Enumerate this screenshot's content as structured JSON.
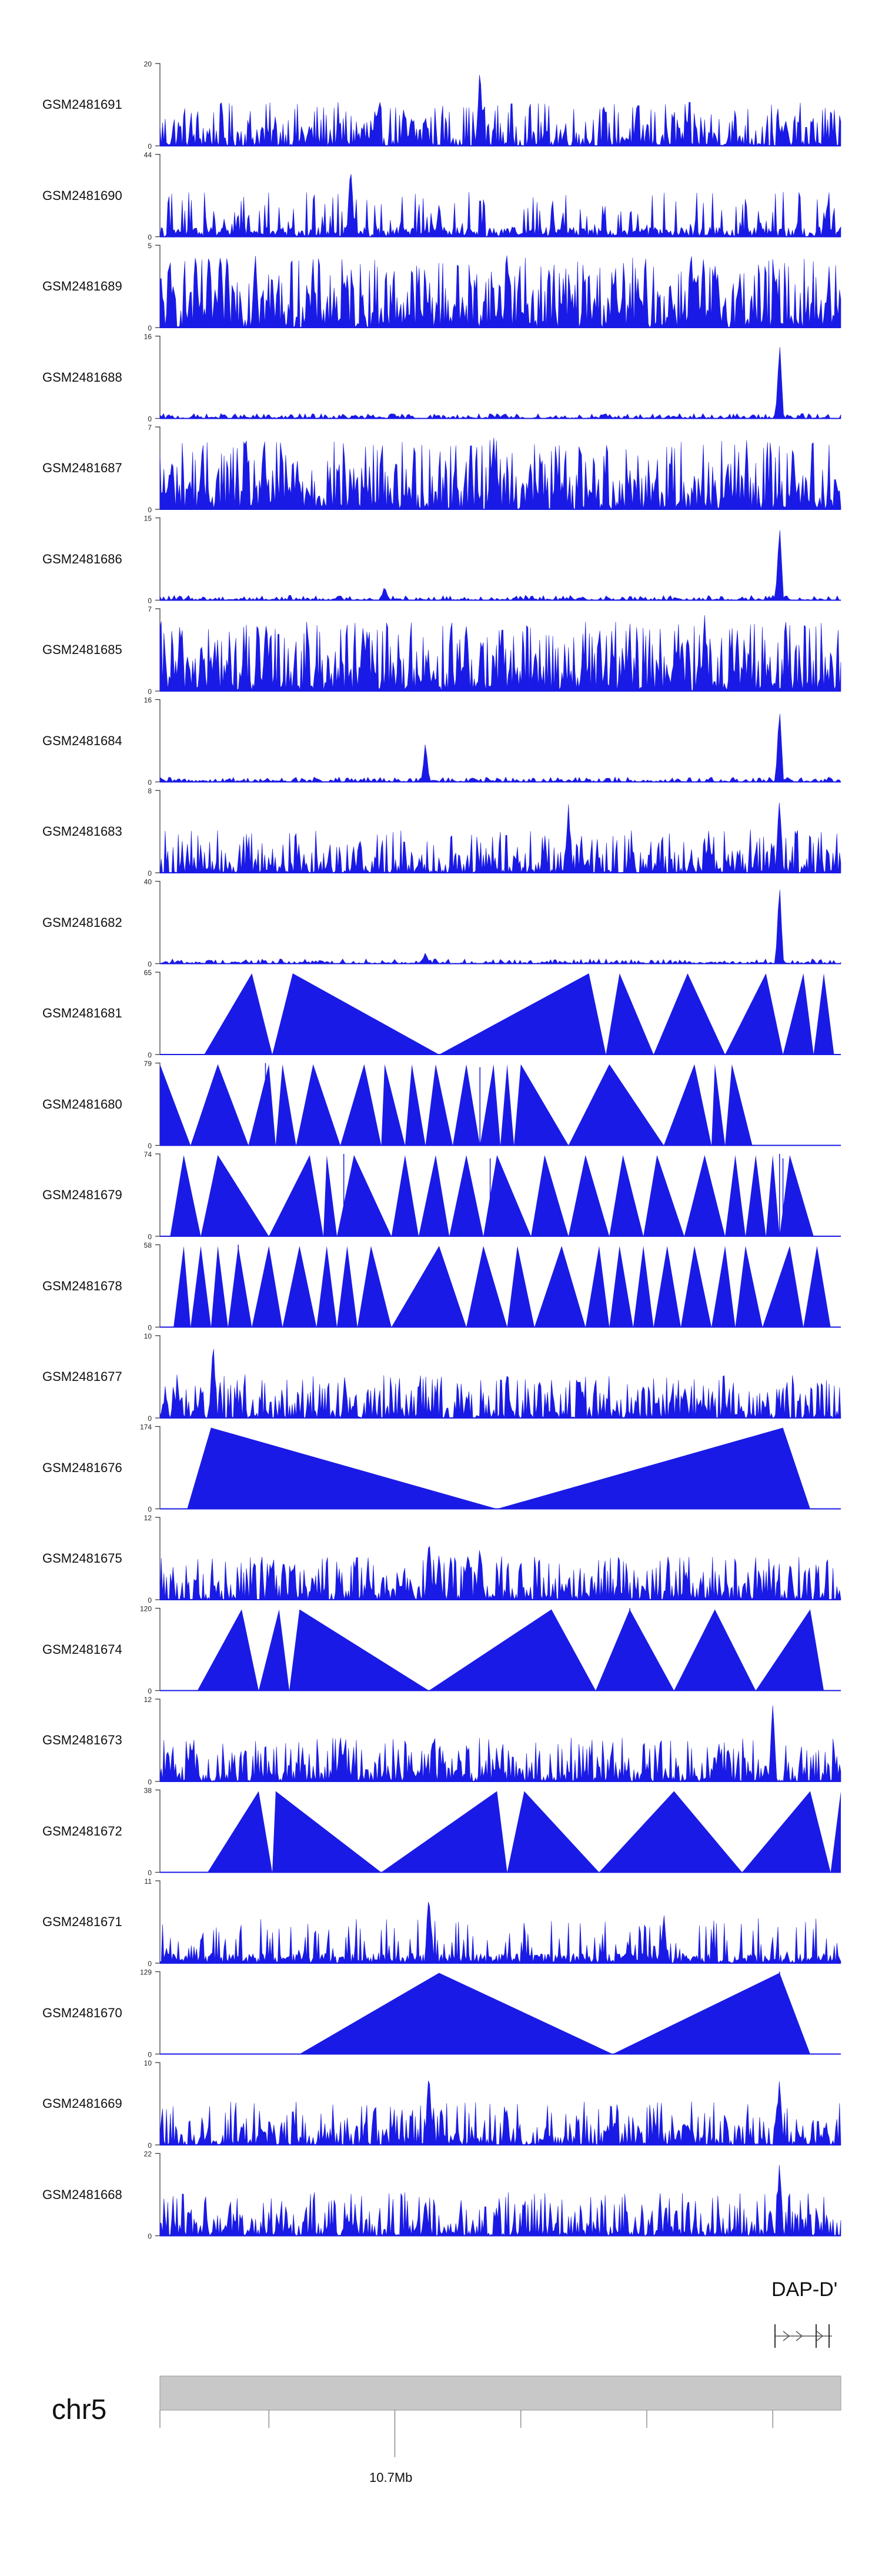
{
  "chart_data": {
    "type": "area",
    "title": "",
    "series_color": "#1a1ae6",
    "chromosome": "chr5",
    "coordinate_label": "10.7Mb",
    "gene": "DAP-D'",
    "tracks": [
      {
        "name": "GSM2481691",
        "ymax": "20",
        "ymin": "0",
        "style": "noisy",
        "peaks": [
          [
            0.39,
            8
          ],
          [
            0.47,
            20
          ],
          [
            0.92,
            6
          ]
        ]
      },
      {
        "name": "GSM2481690",
        "ymax": "44",
        "ymin": "0",
        "style": "spiky",
        "peaks": [
          [
            0.28,
            44
          ],
          [
            0.41,
            18
          ],
          [
            0.98,
            20
          ]
        ]
      },
      {
        "name": "GSM2481689",
        "ymax": "5",
        "ymin": "0",
        "style": "dense",
        "peaks": [
          [
            0.14,
            5
          ],
          [
            0.51,
            5
          ],
          [
            0.78,
            5
          ]
        ]
      },
      {
        "name": "GSM2481688",
        "ymax": "16",
        "ymin": "0",
        "style": "flat",
        "peaks": [
          [
            0.91,
            16
          ]
        ]
      },
      {
        "name": "GSM2481687",
        "ymax": "7",
        "ymin": "0",
        "style": "dense",
        "peaks": [
          [
            0.49,
            7
          ],
          [
            0.93,
            6
          ]
        ]
      },
      {
        "name": "GSM2481686",
        "ymax": "15",
        "ymin": "0",
        "style": "flat",
        "peaks": [
          [
            0.91,
            15
          ],
          [
            0.33,
            3
          ]
        ]
      },
      {
        "name": "GSM2481685",
        "ymax": "7",
        "ymin": "0",
        "style": "dense",
        "peaks": [
          [
            0.8,
            7
          ],
          [
            0.45,
            6
          ]
        ]
      },
      {
        "name": "GSM2481684",
        "ymax": "16",
        "ymin": "0",
        "style": "flat",
        "peaks": [
          [
            0.39,
            8
          ],
          [
            0.91,
            16
          ]
        ]
      },
      {
        "name": "GSM2481683",
        "ymax": "8",
        "ymin": "0",
        "style": "noisy",
        "peaks": [
          [
            0.6,
            7
          ],
          [
            0.91,
            8
          ]
        ]
      },
      {
        "name": "GSM2481682",
        "ymax": "40",
        "ymin": "0",
        "style": "flat",
        "peaks": [
          [
            0.39,
            6
          ],
          [
            0.91,
            40
          ]
        ]
      },
      {
        "name": "GSM2481681",
        "ymax": "65",
        "ymin": "0",
        "style": "tri",
        "tri": [
          [
            0.065,
            0.135,
            0.165
          ],
          [
            0.165,
            0.195,
            0.41
          ],
          [
            0.41,
            0.63,
            0.655
          ],
          [
            0.655,
            0.675,
            0.725
          ],
          [
            0.725,
            0.775,
            0.83
          ],
          [
            0.83,
            0.89,
            0.915
          ],
          [
            0.915,
            0.945,
            0.96
          ],
          [
            0.96,
            0.975,
            0.99
          ]
        ],
        "spikes": []
      },
      {
        "name": "GSM2481680",
        "ymax": "79",
        "ymin": "0",
        "style": "tri",
        "tri": [
          [
            0.0,
            0.0,
            0.045
          ],
          [
            0.045,
            0.085,
            0.13
          ],
          [
            0.13,
            0.16,
            0.17
          ],
          [
            0.17,
            0.18,
            0.2
          ],
          [
            0.2,
            0.225,
            0.265
          ],
          [
            0.265,
            0.3,
            0.325
          ],
          [
            0.325,
            0.33,
            0.36
          ],
          [
            0.36,
            0.37,
            0.39
          ],
          [
            0.39,
            0.405,
            0.43
          ],
          [
            0.43,
            0.45,
            0.47
          ],
          [
            0.47,
            0.49,
            0.5
          ],
          [
            0.5,
            0.51,
            0.52
          ],
          [
            0.52,
            0.53,
            0.6
          ],
          [
            0.6,
            0.66,
            0.74
          ],
          [
            0.74,
            0.785,
            0.81
          ],
          [
            0.81,
            0.815,
            0.83
          ],
          [
            0.83,
            0.84,
            0.87
          ]
        ],
        "spikes": [
          [
            0.155,
            79
          ],
          [
            0.47,
            75
          ]
        ]
      },
      {
        "name": "GSM2481679",
        "ymax": "74",
        "ymin": "0",
        "style": "tri",
        "tri": [
          [
            0.015,
            0.035,
            0.06
          ],
          [
            0.06,
            0.085,
            0.16
          ],
          [
            0.16,
            0.22,
            0.24
          ],
          [
            0.24,
            0.245,
            0.26
          ],
          [
            0.26,
            0.285,
            0.34
          ],
          [
            0.34,
            0.36,
            0.38
          ],
          [
            0.38,
            0.405,
            0.425
          ],
          [
            0.425,
            0.45,
            0.475
          ],
          [
            0.475,
            0.495,
            0.545
          ],
          [
            0.545,
            0.565,
            0.6
          ],
          [
            0.6,
            0.625,
            0.66
          ],
          [
            0.66,
            0.68,
            0.71
          ],
          [
            0.71,
            0.73,
            0.77
          ],
          [
            0.77,
            0.8,
            0.83
          ],
          [
            0.83,
            0.845,
            0.86
          ],
          [
            0.86,
            0.875,
            0.89
          ],
          [
            0.89,
            0.9,
            0.91
          ],
          [
            0.91,
            0.925,
            0.96
          ]
        ],
        "spikes": [
          [
            0.27,
            74
          ],
          [
            0.485,
            70
          ],
          [
            0.91,
            74
          ],
          [
            0.915,
            70
          ]
        ]
      },
      {
        "name": "GSM2481678",
        "ymax": "58",
        "ymin": "0",
        "style": "tri",
        "tri": [
          [
            0.02,
            0.035,
            0.045
          ],
          [
            0.045,
            0.06,
            0.075
          ],
          [
            0.075,
            0.085,
            0.1
          ],
          [
            0.1,
            0.115,
            0.135
          ],
          [
            0.135,
            0.16,
            0.18
          ],
          [
            0.18,
            0.205,
            0.23
          ],
          [
            0.23,
            0.245,
            0.26
          ],
          [
            0.26,
            0.275,
            0.29
          ],
          [
            0.29,
            0.31,
            0.34
          ],
          [
            0.34,
            0.41,
            0.45
          ],
          [
            0.45,
            0.475,
            0.51
          ],
          [
            0.51,
            0.525,
            0.55
          ],
          [
            0.55,
            0.59,
            0.625
          ],
          [
            0.625,
            0.645,
            0.66
          ],
          [
            0.66,
            0.675,
            0.695
          ],
          [
            0.695,
            0.71,
            0.725
          ],
          [
            0.725,
            0.745,
            0.765
          ],
          [
            0.765,
            0.785,
            0.81
          ],
          [
            0.81,
            0.83,
            0.845
          ],
          [
            0.845,
            0.86,
            0.885
          ],
          [
            0.885,
            0.925,
            0.945
          ],
          [
            0.945,
            0.965,
            0.985
          ]
        ],
        "spikes": [
          [
            0.115,
            58
          ],
          [
            0.41,
            56
          ]
        ]
      },
      {
        "name": "GSM2481677",
        "ymax": "10",
        "ymin": "0",
        "style": "noisy",
        "peaks": [
          [
            0.078,
            10
          ],
          [
            0.06,
            4
          ]
        ]
      },
      {
        "name": "GSM2481676",
        "ymax": "174",
        "ymin": "0",
        "style": "tri",
        "tri": [
          [
            0.04,
            0.075,
            0.495
          ],
          [
            0.495,
            0.915,
            0.955
          ]
        ],
        "spikes": []
      },
      {
        "name": "GSM2481675",
        "ymax": "12",
        "ymin": "0",
        "style": "noisy",
        "peaks": [
          [
            0.395,
            10
          ],
          [
            0.47,
            9
          ],
          [
            0.41,
            7
          ]
        ]
      },
      {
        "name": "GSM2481674",
        "ymax": "120",
        "ymin": "0",
        "style": "tri",
        "tri": [
          [
            0.055,
            0.12,
            0.145
          ],
          [
            0.145,
            0.175,
            0.19
          ],
          [
            0.19,
            0.205,
            0.395
          ],
          [
            0.395,
            0.575,
            0.64
          ],
          [
            0.64,
            0.69,
            0.755
          ],
          [
            0.755,
            0.815,
            0.875
          ],
          [
            0.875,
            0.955,
            0.975
          ]
        ],
        "spikes": [
          [
            0.69,
            120
          ]
        ]
      },
      {
        "name": "GSM2481673",
        "ymax": "12",
        "ymin": "0",
        "style": "noisy",
        "peaks": [
          [
            0.9,
            12
          ],
          [
            0.265,
            7
          ]
        ]
      },
      {
        "name": "GSM2481672",
        "ymax": "38",
        "ymin": "0",
        "style": "tri",
        "tri": [
          [
            0.07,
            0.145,
            0.165
          ],
          [
            0.165,
            0.17,
            0.325
          ],
          [
            0.325,
            0.495,
            0.51
          ],
          [
            0.51,
            0.535,
            0.645
          ],
          [
            0.645,
            0.755,
            0.855
          ],
          [
            0.855,
            0.955,
            0.985
          ],
          [
            0.985,
            1.0,
            1.0
          ]
        ],
        "spikes": []
      },
      {
        "name": "GSM2481671",
        "ymax": "11",
        "ymin": "0",
        "style": "spiky",
        "peaks": [
          [
            0.395,
            11
          ],
          [
            0.74,
            7
          ]
        ]
      },
      {
        "name": "GSM2481670",
        "ymax": "129",
        "ymin": "0",
        "style": "tri",
        "tri": [
          [
            0.205,
            0.41,
            0.665
          ],
          [
            0.665,
            0.91,
            0.955
          ]
        ],
        "spikes": [
          [
            0.91,
            129
          ]
        ]
      },
      {
        "name": "GSM2481669",
        "ymax": "10",
        "ymin": "0",
        "style": "noisy",
        "peaks": [
          [
            0.395,
            10
          ],
          [
            0.91,
            9
          ]
        ]
      },
      {
        "name": "GSM2481668",
        "ymax": "22",
        "ymin": "0",
        "style": "noisy",
        "peaks": [
          [
            0.91,
            22
          ],
          [
            0.39,
            11
          ]
        ]
      }
    ]
  }
}
